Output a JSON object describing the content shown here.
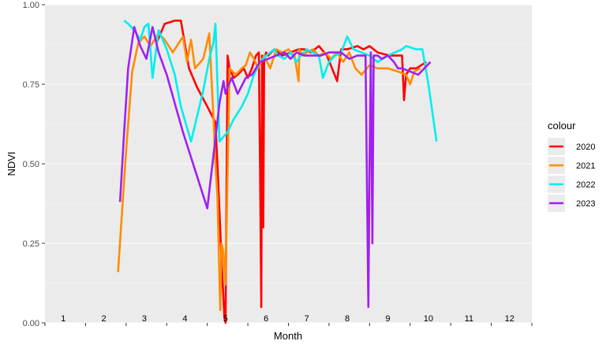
{
  "chart_data": {
    "type": "line",
    "xlabel": "Month",
    "ylabel": "NDVI",
    "xlim": [
      0.55,
      12.55
    ],
    "ylim": [
      0,
      1
    ],
    "grid": true,
    "x_tick_labels": [
      "1",
      "2",
      "3",
      "4",
      "5",
      "6",
      "7",
      "8",
      "9",
      "10",
      "11",
      "12"
    ],
    "y_ticks": [
      0,
      0.25,
      0.5,
      0.75,
      1
    ],
    "y_tick_labels": [
      "0.00",
      "0.25",
      "0.50",
      "0.75",
      "1.00"
    ],
    "legend": {
      "title": "colour",
      "position": "right",
      "entries": [
        "2020",
        "2021",
        "2022",
        "2023"
      ]
    },
    "series": [
      {
        "name": "2020",
        "color": "#ff0000",
        "x": [
          3.3,
          3.5,
          3.75,
          3.9,
          4.1,
          4.3,
          4.55,
          4.75,
          4.8,
          4.85,
          4.9,
          4.94,
          4.97,
          5.0,
          5.05,
          5.1,
          5.2,
          5.3,
          5.45,
          5.55,
          5.65,
          5.75,
          5.82,
          5.85,
          5.88,
          5.9,
          5.93,
          5.95,
          6.0,
          6.05,
          6.2,
          6.4,
          6.6,
          6.8,
          6.95,
          7.1,
          7.3,
          7.5,
          7.75,
          7.85,
          8.0,
          8.25,
          8.4,
          8.55,
          8.75,
          9.05,
          9.35,
          9.4,
          9.45,
          9.55,
          9.7,
          9.95
        ],
        "y": [
          0.88,
          0.94,
          0.95,
          0.95,
          0.8,
          0.74,
          0.68,
          0.63,
          0.5,
          0.35,
          0.2,
          0.1,
          0.02,
          0.0,
          0.84,
          0.8,
          0.77,
          0.78,
          0.8,
          0.77,
          0.8,
          0.84,
          0.85,
          0.5,
          0.05,
          0.84,
          0.3,
          0.82,
          0.85,
          0.84,
          0.86,
          0.84,
          0.85,
          0.86,
          0.86,
          0.85,
          0.87,
          0.84,
          0.76,
          0.86,
          0.86,
          0.87,
          0.86,
          0.87,
          0.85,
          0.84,
          0.84,
          0.7,
          0.78,
          0.8,
          0.8,
          0.82
        ]
      },
      {
        "name": "2021",
        "color": "#ff8c00",
        "x": [
          2.35,
          2.55,
          2.7,
          2.85,
          3.0,
          3.15,
          3.35,
          3.5,
          3.7,
          3.95,
          4.05,
          4.15,
          4.25,
          4.45,
          4.6,
          4.7,
          4.75,
          4.8,
          4.87,
          4.9,
          4.95,
          5.0,
          5.1,
          5.25,
          5.4,
          5.5,
          5.6,
          5.7,
          5.8,
          5.95,
          6.1,
          6.25,
          6.4,
          6.55,
          6.7,
          6.8,
          6.82,
          6.9,
          7.0,
          7.15,
          7.3,
          7.45,
          7.6,
          7.75,
          7.9,
          8.05,
          8.2,
          8.35,
          8.55,
          8.75,
          9.0,
          9.25,
          9.45,
          9.55,
          9.65,
          9.8
        ],
        "y": [
          0.16,
          0.54,
          0.79,
          0.88,
          0.9,
          0.87,
          0.91,
          0.89,
          0.85,
          0.9,
          0.82,
          0.89,
          0.8,
          0.83,
          0.91,
          0.65,
          0.5,
          0.4,
          0.04,
          0.25,
          0.22,
          0.12,
          0.8,
          0.78,
          0.8,
          0.81,
          0.85,
          0.83,
          0.8,
          0.84,
          0.8,
          0.86,
          0.85,
          0.86,
          0.84,
          0.76,
          0.86,
          0.84,
          0.85,
          0.86,
          0.84,
          0.85,
          0.83,
          0.85,
          0.82,
          0.85,
          0.8,
          0.78,
          0.81,
          0.8,
          0.8,
          0.79,
          0.78,
          0.75,
          0.79,
          0.8
        ]
      },
      {
        "name": "2022",
        "color": "#00eeee",
        "x": [
          2.5,
          2.6,
          2.75,
          2.9,
          3.0,
          3.1,
          3.2,
          3.35,
          3.55,
          3.75,
          3.9,
          4.15,
          4.3,
          4.45,
          4.6,
          4.7,
          4.75,
          4.85,
          5.05,
          5.2,
          5.4,
          5.55,
          5.7,
          5.85,
          6.0,
          6.2,
          6.3,
          6.45,
          6.6,
          6.75,
          6.85,
          7.0,
          7.15,
          7.3,
          7.4,
          7.55,
          7.7,
          7.85,
          8.0,
          8.15,
          8.35,
          8.55,
          8.75,
          9.0,
          9.35,
          9.45,
          9.7,
          9.85,
          10.0,
          10.2
        ],
        "y": [
          0.95,
          0.94,
          0.92,
          0.89,
          0.93,
          0.94,
          0.77,
          0.92,
          0.86,
          0.78,
          0.68,
          0.57,
          0.65,
          0.73,
          0.83,
          0.88,
          0.94,
          0.57,
          0.6,
          0.64,
          0.68,
          0.72,
          0.78,
          0.82,
          0.84,
          0.86,
          0.84,
          0.83,
          0.85,
          0.82,
          0.84,
          0.86,
          0.85,
          0.84,
          0.77,
          0.82,
          0.84,
          0.85,
          0.9,
          0.86,
          0.85,
          0.84,
          0.82,
          0.84,
          0.86,
          0.87,
          0.86,
          0.86,
          0.75,
          0.57
        ]
      },
      {
        "name": "2023",
        "color": "#a020f0",
        "x": [
          2.4,
          2.5,
          2.6,
          2.75,
          2.9,
          3.05,
          3.2,
          3.35,
          3.55,
          3.75,
          3.95,
          4.15,
          4.35,
          4.55,
          4.75,
          4.85,
          4.95,
          5.0,
          5.05,
          5.15,
          5.3,
          5.5,
          5.65,
          5.85,
          6.05,
          6.25,
          6.45,
          6.6,
          6.75,
          6.95,
          7.15,
          7.35,
          7.55,
          7.7,
          7.85,
          8.05,
          8.25,
          8.45,
          8.52,
          8.55,
          8.58,
          8.62,
          8.65,
          8.75,
          8.85,
          9.0,
          9.15,
          9.25,
          9.35,
          9.55,
          9.75,
          9.9,
          10.05
        ],
        "y": [
          0.38,
          0.6,
          0.8,
          0.93,
          0.87,
          0.83,
          0.93,
          0.85,
          0.78,
          0.69,
          0.6,
          0.52,
          0.44,
          0.36,
          0.58,
          0.69,
          0.76,
          0.72,
          0.74,
          0.77,
          0.72,
          0.77,
          0.78,
          0.82,
          0.83,
          0.84,
          0.85,
          0.83,
          0.85,
          0.84,
          0.84,
          0.84,
          0.85,
          0.85,
          0.85,
          0.83,
          0.84,
          0.84,
          0.05,
          0.5,
          0.85,
          0.25,
          0.84,
          0.84,
          0.83,
          0.84,
          0.82,
          0.8,
          0.8,
          0.79,
          0.78,
          0.8,
          0.82
        ]
      }
    ]
  }
}
